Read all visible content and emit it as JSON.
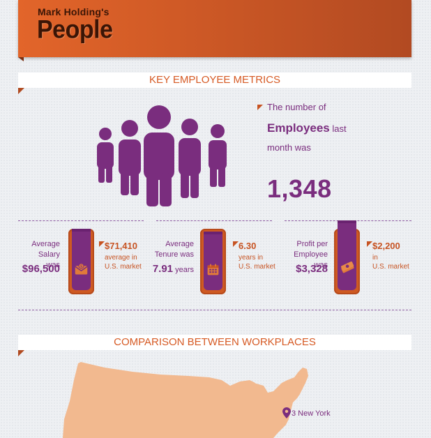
{
  "header": {
    "company": "Mark Holding's",
    "title": "People"
  },
  "sections": {
    "metrics_title": "KEY EMPLOYEE METRICS",
    "comparison_title": "COMPARISON BETWEEN WORKPLACES"
  },
  "employees": {
    "line1": "The number of",
    "line2_bold": "Employees",
    "line2_rest": " last",
    "line3": "month was",
    "count": "1,348",
    "icon": "people-group-icon"
  },
  "metrics": [
    {
      "label_line1": "Average Salary",
      "label_line2": "was",
      "value": "$96,500",
      "value_unit": "",
      "us_value": "$71,410",
      "us_note_line1": "average in",
      "us_note_line2": "U.S. market",
      "icon": "money-envelope-icon"
    },
    {
      "label_line1": "Average",
      "label_line2": "Tenure was",
      "value": "7.91",
      "value_unit": " years",
      "us_value": "6.30",
      "us_note_line1": "years in",
      "us_note_line2": "U.S. market",
      "icon": "calendar-icon"
    },
    {
      "label_line1": "Profit per",
      "label_line2": "Employee was",
      "value": "$3,328",
      "value_unit": "",
      "us_value": "$2,200",
      "us_note_line1": "in",
      "us_note_line2": "U.S. market",
      "icon": "cash-stack-icon"
    }
  ],
  "map": {
    "pin_label": "3 New York",
    "pin_icon": "location-pin-icon"
  },
  "colors": {
    "orange": "#d65a24",
    "purple": "#7a2d7e",
    "map_fill": "#f2b98f"
  }
}
